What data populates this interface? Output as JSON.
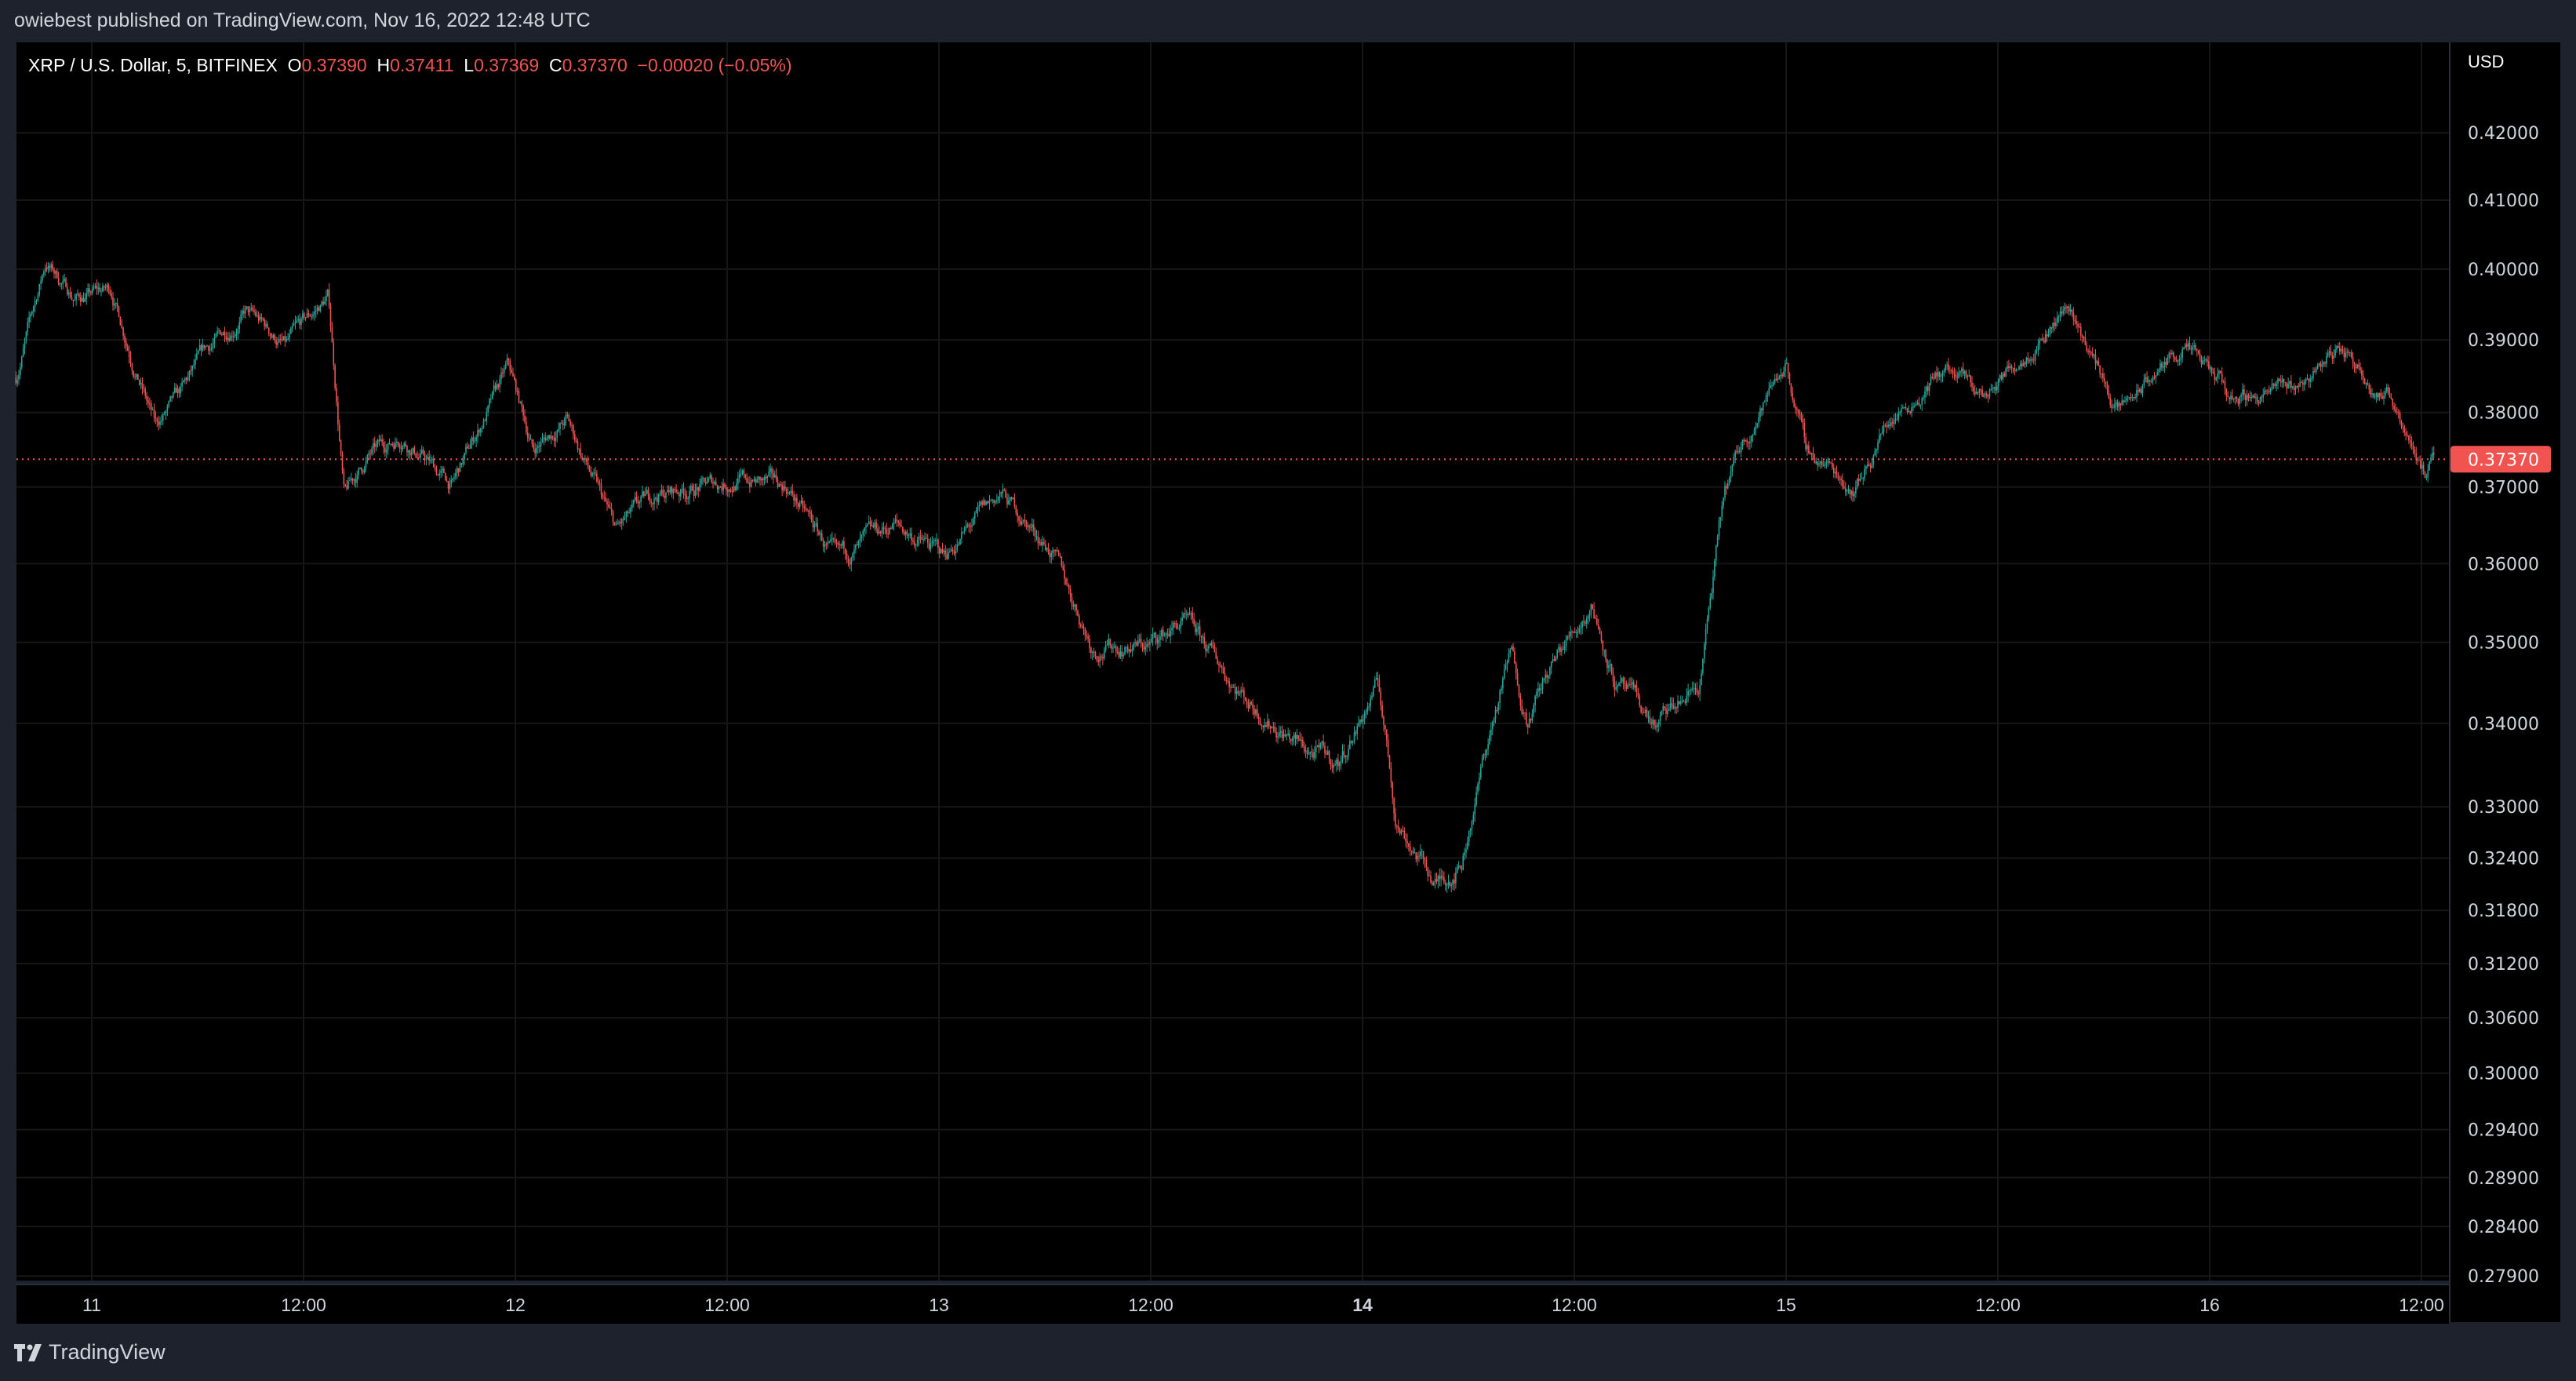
{
  "publisher": "owiebest published on TradingView.com, Nov 16, 2022 12:48 UTC",
  "legend": {
    "symbol": "XRP / U.S. Dollar, 5, BITFINEX",
    "o_label": "O",
    "o": "0.37390",
    "h_label": "H",
    "h": "0.37411",
    "l_label": "L",
    "l": "0.37369",
    "c_label": "C",
    "c": "0.37370",
    "change": "−0.00020 (−0.05%)"
  },
  "footer": {
    "brand": "TradingView",
    "logo_icon": "tradingview-logo-icon"
  },
  "colors": {
    "up": "#26a69a",
    "down": "#ef5350",
    "last_price": "#f05350",
    "background": "#000000",
    "grid": "#161616"
  },
  "chart_data": {
    "type": "candlestick",
    "interval": "5 min",
    "currency": "USD",
    "scale": "log",
    "grid": true,
    "ylim": [
      0.277,
      0.428
    ],
    "xlim": [
      "2022-11-10T19:40",
      "2022-11-16T14:40"
    ],
    "last_price": 0.3737,
    "last_price_label": "0.37370",
    "price_ticks": [
      {
        "value": 0.42,
        "label": "0.42000"
      },
      {
        "value": 0.41,
        "label": "0.41000"
      },
      {
        "value": 0.4,
        "label": "0.40000"
      },
      {
        "value": 0.39,
        "label": "0.39000"
      },
      {
        "value": 0.38,
        "label": "0.38000"
      },
      {
        "value": 0.37,
        "label": "0.37000"
      },
      {
        "value": 0.36,
        "label": "0.36000"
      },
      {
        "value": 0.35,
        "label": "0.35000"
      },
      {
        "value": 0.34,
        "label": "0.34000"
      },
      {
        "value": 0.33,
        "label": "0.33000"
      },
      {
        "value": 0.324,
        "label": "0.32400"
      },
      {
        "value": 0.318,
        "label": "0.31800"
      },
      {
        "value": 0.312,
        "label": "0.31200"
      },
      {
        "value": 0.306,
        "label": "0.30600"
      },
      {
        "value": 0.3,
        "label": "0.30000"
      },
      {
        "value": 0.294,
        "label": "0.29400"
      },
      {
        "value": 0.289,
        "label": "0.28900"
      },
      {
        "value": 0.284,
        "label": "0.28400"
      },
      {
        "value": 0.279,
        "label": "0.27900"
      }
    ],
    "time_ticks": [
      {
        "time": "2022-11-11T00:00",
        "label": "11"
      },
      {
        "time": "2022-11-11T12:00",
        "label": "12:00"
      },
      {
        "time": "2022-11-12T00:00",
        "label": "12"
      },
      {
        "time": "2022-11-12T12:00",
        "label": "12:00"
      },
      {
        "time": "2022-11-13T00:00",
        "label": "13"
      },
      {
        "time": "2022-11-13T12:00",
        "label": "12:00"
      },
      {
        "time": "2022-11-14T00:00",
        "label": "14",
        "bold": true
      },
      {
        "time": "2022-11-14T12:00",
        "label": "12:00"
      },
      {
        "time": "2022-11-15T00:00",
        "label": "15"
      },
      {
        "time": "2022-11-15T12:00",
        "label": "12:00"
      },
      {
        "time": "2022-11-16T00:00",
        "label": "16"
      },
      {
        "time": "2022-11-16T12:00",
        "label": "12:00"
      }
    ],
    "price_path": [
      [
        "2022-11-10T19:42",
        0.3848
      ],
      [
        "2022-11-10T21:24",
        0.401
      ],
      [
        "2022-11-10T23:00",
        0.396
      ],
      [
        "2022-11-11T01:06",
        0.397
      ],
      [
        "2022-11-11T02:00",
        0.39
      ],
      [
        "2022-11-11T03:36",
        0.378
      ],
      [
        "2022-11-11T05:00",
        0.382
      ],
      [
        "2022-11-11T06:24",
        0.388
      ],
      [
        "2022-11-11T08:42",
        0.394
      ],
      [
        "2022-11-11T11:00",
        0.389
      ],
      [
        "2022-11-11T13:24",
        0.396
      ],
      [
        "2022-11-11T14:18",
        0.3687
      ],
      [
        "2022-11-11T15:42",
        0.374
      ],
      [
        "2022-11-11T17:36",
        0.377
      ],
      [
        "2022-11-11T20:24",
        0.37
      ],
      [
        "2022-11-11T23:36",
        0.386
      ],
      [
        "2022-11-12T01:00",
        0.375
      ],
      [
        "2022-11-12T02:54",
        0.379
      ],
      [
        "2022-11-12T05:42",
        0.364
      ],
      [
        "2022-11-12T08:00",
        0.369
      ],
      [
        "2022-11-12T12:42",
        0.371
      ],
      [
        "2022-11-12T15:24",
        0.37
      ],
      [
        "2022-11-12T18:12",
        0.36
      ],
      [
        "2022-11-12T21:30",
        0.365
      ],
      [
        "2022-11-13T00:18",
        0.361
      ],
      [
        "2022-11-13T03:30",
        0.369
      ],
      [
        "2022-11-13T06:18",
        0.362
      ],
      [
        "2022-11-13T08:42",
        0.3496
      ],
      [
        "2022-11-13T11:54",
        0.3496
      ],
      [
        "2022-11-13T13:48",
        0.3526
      ],
      [
        "2022-11-13T17:30",
        0.343
      ],
      [
        "2022-11-13T20:42",
        0.3369
      ],
      [
        "2022-11-13T22:36",
        0.335
      ],
      [
        "2022-11-14T00:54",
        0.3448
      ],
      [
        "2022-11-14T01:54",
        0.3287
      ],
      [
        "2022-11-14T04:12",
        0.3209
      ],
      [
        "2022-11-14T05:36",
        0.3237
      ],
      [
        "2022-11-14T07:00",
        0.3369
      ],
      [
        "2022-11-14T08:24",
        0.3487
      ],
      [
        "2022-11-14T09:18",
        0.341
      ],
      [
        "2022-11-14T11:12",
        0.3487
      ],
      [
        "2022-11-14T13:00",
        0.355
      ],
      [
        "2022-11-14T14:24",
        0.3448
      ],
      [
        "2022-11-14T16:42",
        0.3395
      ],
      [
        "2022-11-14T19:06",
        0.3448
      ],
      [
        "2022-11-14T20:30",
        0.3687
      ],
      [
        "2022-11-14T21:24",
        0.375
      ],
      [
        "2022-11-15T00:00",
        0.3872
      ],
      [
        "2022-11-15T01:06",
        0.375
      ],
      [
        "2022-11-15T03:54",
        0.37
      ],
      [
        "2022-11-15T05:48",
        0.379
      ],
      [
        "2022-11-15T09:00",
        0.3859
      ],
      [
        "2022-11-15T11:18",
        0.382
      ],
      [
        "2022-11-15T13:42",
        0.389
      ],
      [
        "2022-11-15T16:00",
        0.395
      ],
      [
        "2022-11-15T18:48",
        0.38
      ],
      [
        "2022-11-15T22:30",
        0.389
      ],
      [
        "2022-11-16T01:18",
        0.382
      ],
      [
        "2022-11-16T05:00",
        0.3835
      ],
      [
        "2022-11-16T07:18",
        0.389
      ],
      [
        "2022-11-16T10:36",
        0.381
      ],
      [
        "2022-11-16T12:18",
        0.3716
      ],
      [
        "2022-11-16T12:45",
        0.3737
      ]
    ]
  }
}
